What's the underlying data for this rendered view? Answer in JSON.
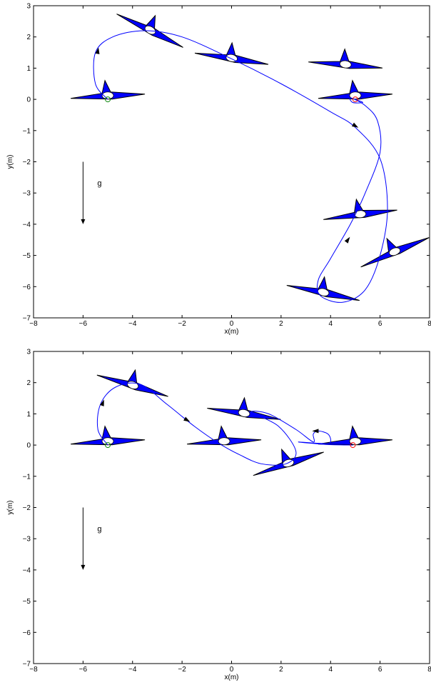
{
  "chart_data": [
    {
      "type": "line",
      "title": "",
      "xlabel": "x(m)",
      "ylabel": "y(m)",
      "xlim": [
        -8,
        8
      ],
      "ylim": [
        -7,
        3
      ],
      "xticks": [
        -8,
        -6,
        -4,
        -2,
        0,
        2,
        4,
        6,
        8
      ],
      "yticks": [
        -7,
        -6,
        -5,
        -4,
        -3,
        -2,
        -1,
        0,
        1,
        2,
        3
      ],
      "grid": false,
      "trajectory_color": "#0000ff",
      "wing_color": "#0000ff",
      "gravity": {
        "label": "g",
        "x": -6,
        "y_from": -2,
        "y_to": -4
      },
      "start_marker": {
        "x": -5,
        "y": 0,
        "color": "#008000"
      },
      "end_marker": {
        "x": 5,
        "y": 0,
        "color": "#ff0000"
      },
      "trajectory": [
        [
          -5,
          0
        ],
        [
          -5.5,
          0.5
        ],
        [
          -5.5,
          1.5
        ],
        [
          -4.8,
          2
        ],
        [
          -3.5,
          2.2
        ],
        [
          -2,
          2
        ],
        [
          0,
          1.3
        ],
        [
          2,
          0.5
        ],
        [
          4,
          -0.4
        ],
        [
          5,
          -0.9
        ],
        [
          6,
          -1.9
        ],
        [
          6.3,
          -3.5
        ],
        [
          6,
          -5
        ],
        [
          5.4,
          -6.1
        ],
        [
          4.5,
          -6.5
        ],
        [
          3.6,
          -6.3
        ],
        [
          3.5,
          -5.8
        ],
        [
          4,
          -5.1
        ],
        [
          4.8,
          -4
        ],
        [
          5.4,
          -3
        ],
        [
          6,
          -1.7
        ],
        [
          5.9,
          -0.7
        ],
        [
          5.4,
          -0.2
        ],
        [
          4.8,
          0.05
        ],
        [
          4.9,
          -0.1
        ],
        [
          5.3,
          -0.1
        ],
        [
          5,
          0
        ]
      ],
      "arrows": [
        {
          "x": -5.4,
          "y": 1.55,
          "angle": -80
        },
        {
          "x": 5,
          "y": -0.85,
          "angle": 30
        },
        {
          "x": 4.7,
          "y": -4.5,
          "angle": -55
        }
      ],
      "snapshots": [
        {
          "x": -5,
          "y": 0.1,
          "angle": 0
        },
        {
          "x": -3.3,
          "y": 2.2,
          "angle": 30
        },
        {
          "x": 0,
          "y": 1.3,
          "angle": 12
        },
        {
          "x": 4.6,
          "y": 1.1,
          "angle": 8
        },
        {
          "x": 5,
          "y": 0.1,
          "angle": 0
        },
        {
          "x": 5.2,
          "y": -3.7,
          "angle": -4
        },
        {
          "x": 6.6,
          "y": -4.9,
          "angle": -20
        },
        {
          "x": 3.7,
          "y": -6.2,
          "angle": 15
        }
      ]
    },
    {
      "type": "line",
      "title": "",
      "xlabel": "x(m)",
      "ylabel": "y(m)",
      "xlim": [
        -8,
        8
      ],
      "ylim": [
        -7,
        3
      ],
      "xticks": [
        -8,
        -6,
        -4,
        -2,
        0,
        2,
        4,
        6,
        8
      ],
      "yticks": [
        -7,
        -6,
        -5,
        -4,
        -3,
        -2,
        -1,
        0,
        1,
        2,
        3
      ],
      "grid": false,
      "trajectory_color": "#0000ff",
      "wing_color": "#0000ff",
      "gravity": {
        "label": "g",
        "x": -6,
        "y_from": -2,
        "y_to": -4
      },
      "start_marker": {
        "x": -5,
        "y": 0,
        "color": "#008000"
      },
      "end_marker": {
        "x": 4.9,
        "y": 0,
        "color": "#ff0000"
      },
      "trajectory": [
        [
          -5,
          0
        ],
        [
          -5.4,
          0.5
        ],
        [
          -5.3,
          1.3
        ],
        [
          -4.7,
          1.85
        ],
        [
          -3.7,
          1.95
        ],
        [
          -2.6,
          1.3
        ],
        [
          -1.5,
          0.6
        ],
        [
          -0.5,
          0.05
        ],
        [
          0.3,
          -0.3
        ],
        [
          1.2,
          -0.6
        ],
        [
          2.2,
          -0.6
        ],
        [
          2.6,
          -0.2
        ],
        [
          1.9,
          0.6
        ],
        [
          0.8,
          1.05
        ],
        [
          1.5,
          1.0
        ],
        [
          2.6,
          0.5
        ],
        [
          3.3,
          0.1
        ],
        [
          3.3,
          0.35
        ],
        [
          3.5,
          0.45
        ],
        [
          3.9,
          0.35
        ],
        [
          4,
          0.1
        ],
        [
          3.7,
          0.05
        ],
        [
          2.7,
          0.1
        ],
        [
          3.8,
          0.02
        ],
        [
          4.9,
          0
        ]
      ],
      "arrows": [
        {
          "x": -5.2,
          "y": 1.35,
          "angle": -70
        },
        {
          "x": -1.8,
          "y": 0.8,
          "angle": 30
        },
        {
          "x": 3.4,
          "y": 0.45,
          "angle": 180
        }
      ],
      "snapshots": [
        {
          "x": -5,
          "y": 0.1,
          "angle": 0
        },
        {
          "x": -4,
          "y": 1.9,
          "angle": 20
        },
        {
          "x": -0.3,
          "y": 0.1,
          "angle": 0
        },
        {
          "x": 0.5,
          "y": 1.0,
          "angle": 12
        },
        {
          "x": 2.3,
          "y": -0.6,
          "angle": -15
        },
        {
          "x": 5,
          "y": 0.1,
          "angle": 0
        }
      ]
    }
  ]
}
